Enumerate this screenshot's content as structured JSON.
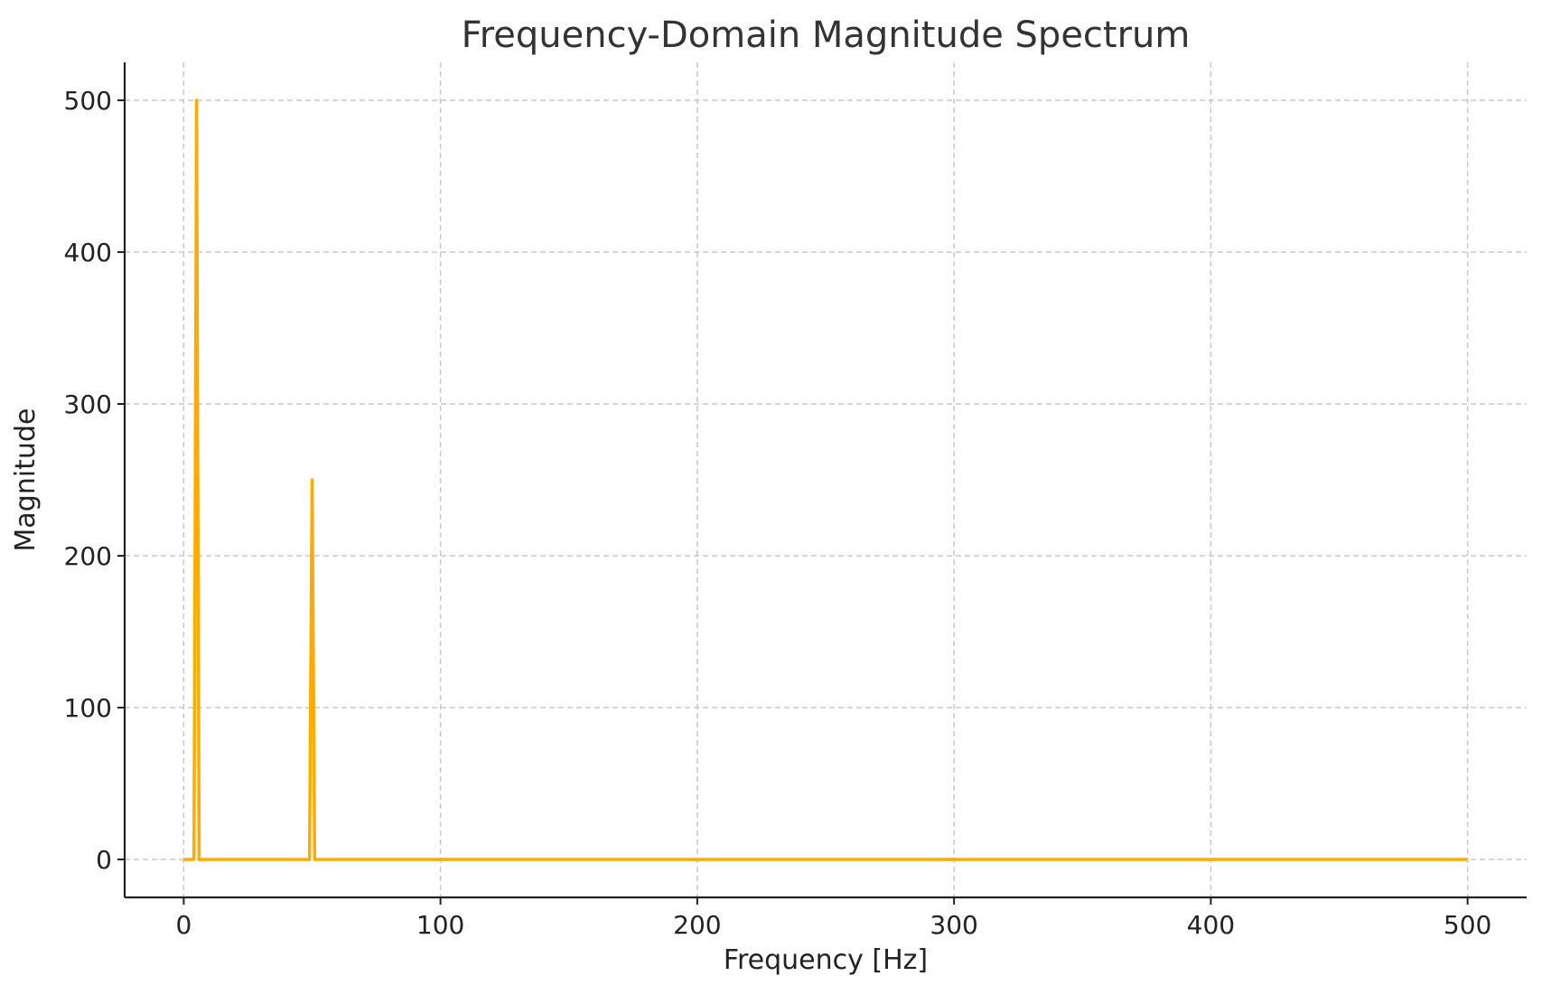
{
  "chart_data": {
    "type": "line",
    "title": "Frequency-Domain Magnitude Spectrum",
    "xlabel": "Frequency [Hz]",
    "ylabel": "Magnitude",
    "xlim": [
      -23,
      523
    ],
    "ylim": [
      -25,
      525
    ],
    "xticks": [
      0,
      100,
      200,
      300,
      400,
      500
    ],
    "yticks": [
      0,
      100,
      200,
      300,
      400,
      500
    ],
    "xtick_labels": [
      "0",
      "100",
      "200",
      "300",
      "400",
      "500"
    ],
    "ytick_labels": [
      "0",
      "100",
      "200",
      "300",
      "400",
      "500"
    ],
    "grid": true,
    "series": [
      {
        "color": "#FFAA00",
        "x": [
          0,
          4,
          5,
          6,
          49,
          50,
          51,
          500
        ],
        "y": [
          0,
          0,
          500,
          0,
          0,
          250,
          0,
          0
        ]
      }
    ]
  }
}
